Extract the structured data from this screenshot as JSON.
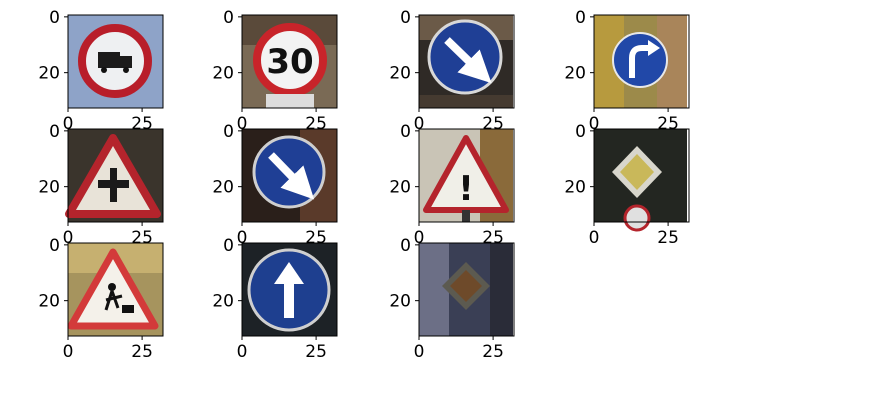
{
  "figure": {
    "tick_labels": {
      "zero": "0",
      "twenty": "20",
      "twentyfive": "25"
    }
  },
  "signs": [
    {
      "id": "no-trucks",
      "text": ""
    },
    {
      "id": "speed-limit-30",
      "text": "30"
    },
    {
      "id": "keep-right",
      "text": ""
    },
    {
      "id": "turn-right-ahead",
      "text": ""
    },
    {
      "id": "right-of-way",
      "text": ""
    },
    {
      "id": "keep-right-2",
      "text": ""
    },
    {
      "id": "general-caution",
      "text": "!"
    },
    {
      "id": "priority-road",
      "text": ""
    },
    {
      "id": "road-work",
      "text": ""
    },
    {
      "id": "ahead-only",
      "text": ""
    },
    {
      "id": "priority-road-dark",
      "text": ""
    }
  ],
  "colors": {
    "sign_red": "#c8242a",
    "sign_blue": "#1e3d8f",
    "sign_white": "#f2f2f2"
  }
}
